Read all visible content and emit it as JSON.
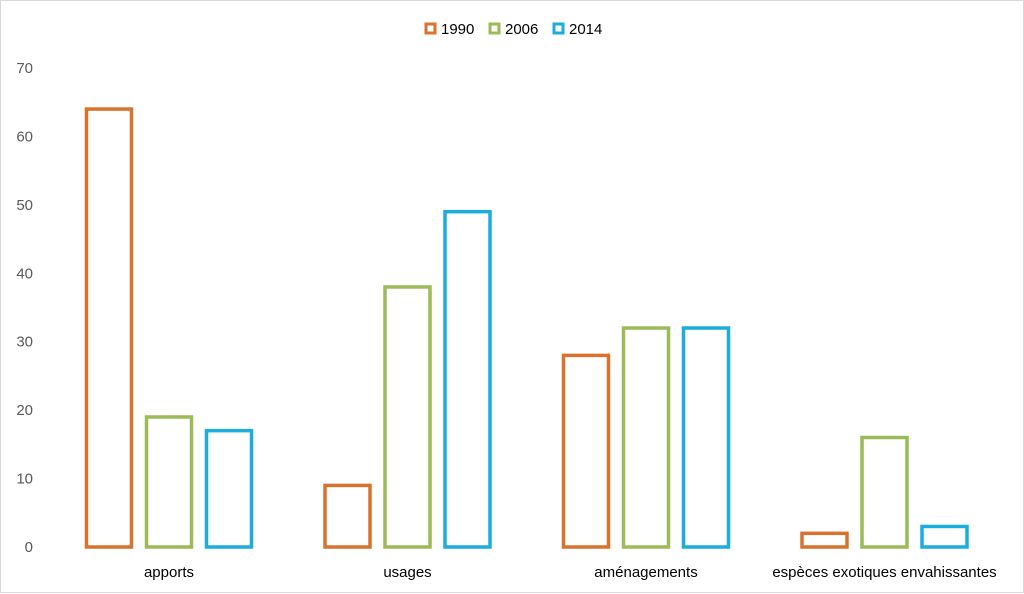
{
  "chart_data": {
    "type": "bar",
    "title": "",
    "xlabel": "",
    "ylabel": "",
    "ylim": [
      0,
      70
    ],
    "yticks": [
      0,
      10,
      20,
      30,
      40,
      50,
      60,
      70
    ],
    "grid": false,
    "legend_position": "top-center",
    "bar_style": "outline",
    "categories": [
      "apports",
      "usages",
      "aménagements",
      "espèces exotiques envahissantes"
    ],
    "series": [
      {
        "name": "1990",
        "color": "#D8722C",
        "values": [
          64,
          9,
          28,
          2
        ]
      },
      {
        "name": "2006",
        "color": "#9BBB59",
        "values": [
          19,
          38,
          32,
          16
        ]
      },
      {
        "name": "2014",
        "color": "#1AADDD",
        "values": [
          17,
          49,
          32,
          3
        ]
      }
    ]
  }
}
